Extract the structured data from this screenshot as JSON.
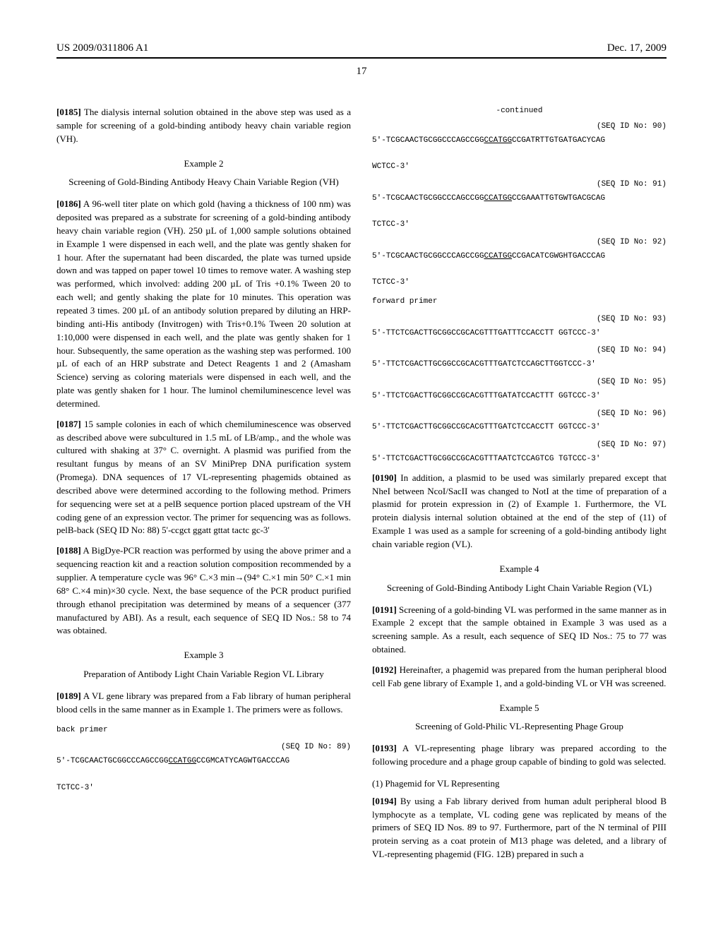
{
  "header": {
    "left": "US 2009/0311806 A1",
    "right": "Dec. 17, 2009"
  },
  "page_number": "17",
  "left_col": {
    "p0185": {
      "num": "[0185]",
      "text": "The dialysis internal solution obtained in the above step was used as a sample for screening of a gold-binding antibody heavy chain variable region (VH)."
    },
    "ex2_title": "Example 2",
    "ex2_sub": "Screening of Gold-Binding Antibody Heavy Chain Variable Region (VH)",
    "p0186": {
      "num": "[0186]",
      "text": "A 96-well titer plate on which gold (having a thickness of 100 nm) was deposited was prepared as a substrate for screening of a gold-binding antibody heavy chain variable region (VH). 250 µL of 1,000 sample solutions obtained in Example 1 were dispensed in each well, and the plate was gently shaken for 1 hour. After the supernatant had been discarded, the plate was turned upside down and was tapped on paper towel 10 times to remove water. A washing step was performed, which involved: adding 200 µL of Tris +0.1% Tween 20 to each well; and gently shaking the plate for 10 minutes. This operation was repeated 3 times. 200 µL of an antibody solution prepared by diluting an HRP-binding anti-His antibody (Invitrogen) with Tris+0.1% Tween 20 solution at 1:10,000 were dispensed in each well, and the plate was gently shaken for 1 hour. Subsequently, the same operation as the washing step was performed. 100 µL of each of an HRP substrate and Detect Reagents 1 and 2 (Amasham Science) serving as coloring materials were dispensed in each well, and the plate was gently shaken for 1 hour. The luminol chemiluminescence level was determined."
    },
    "p0187": {
      "num": "[0187]",
      "text": "15 sample colonies in each of which chemiluminescence was observed as described above were subcultured in 1.5 mL of LB/amp., and the whole was cultured with shaking at 37° C. overnight. A plasmid was purified from the resultant fungus by means of an SV MiniPrep DNA purification system (Promega). DNA sequences of 17 VL-representing phagemids obtained as described above were determined according to the following method. Primers for sequencing were set at a pelB sequence portion placed upstream of the VH coding gene of an expression vector. The primer for sequencing was as follows. pelB-back (SEQ ID No: 88) 5'-ccgct ggatt gttat tactc gc-3'"
    },
    "p0188": {
      "num": "[0188]",
      "text": "A BigDye-PCR reaction was performed by using the above primer and a sequencing reaction kit and a reaction solution composition recommended by a supplier. A temperature cycle was 96° C.×3 min→(94° C.×1 min 50° C.×1 min 68° C.×4 min)×30 cycle. Next, the base sequence of the PCR product purified through ethanol precipitation was determined by means of a sequencer (377 manufactured by ABI). As a result, each sequence of SEQ ID Nos.: 58 to 74 was obtained."
    },
    "ex3_title": "Example 3",
    "ex3_sub": "Preparation of Antibody Light Chain Variable Region VL Library",
    "p0189": {
      "num": "[0189]",
      "text": "A VL gene library was prepared from a Fab library of human peripheral blood cells in the same manner as in Example 1. The primers were as follows."
    },
    "back_primer_label": "back primer",
    "seq89_label": "(SEQ ID No: 89)",
    "seq89_line1_pre": "5'-TCGCAACTGCGGCCCAGCCGG",
    "seq89_line1_u": "CCATGG",
    "seq89_line1_post": "CCGMCATYCAGWTGACCCAG",
    "seq89_line2": "TCTCC-3'"
  },
  "right_col": {
    "continued": "-continued",
    "seq90_label": "(SEQ ID No: 90)",
    "seq90_line1_pre": "5'-TCGCAACTGCGGCCCAGCCGG",
    "seq90_line1_u": "CCATGG",
    "seq90_line1_post": "CCGATRTTGTGATGACYCAG",
    "seq90_line2": "WCTCC-3'",
    "seq91_label": "(SEQ ID No: 91)",
    "seq91_line1_pre": "5'-TCGCAACTGCGGCCCAGCCGG",
    "seq91_line1_u": "CCATGG",
    "seq91_line1_post": "CCGAAATTGTGWTGACGCAG",
    "seq91_line2": "TCTCC-3'",
    "seq92_label": "(SEQ ID No: 92)",
    "seq92_line1_pre": "5'-TCGCAACTGCGGCCCAGCCGG",
    "seq92_line1_u": "CCATGG",
    "seq92_line1_post": "CCGACATCGWGHTGACCCAG",
    "seq92_line2": "TCTCC-3'",
    "fwd_primer_label": "forward primer",
    "seq93_label": "(SEQ ID No: 93)",
    "seq93": "5'-TTCTCGACTTGCGGCCGCACGTTTGATTTCCACCTT GGTCCC-3'",
    "seq94_label": "(SEQ ID No: 94)",
    "seq94": "5'-TTCTCGACTTGCGGCCGCACGTTTGATCTCCAGCTTGGTCCC-3'",
    "seq95_label": "(SEQ ID No: 95)",
    "seq95": "5'-TTCTCGACTTGCGGCCGCACGTTTGATATCCACTTT GGTCCC-3'",
    "seq96_label": "(SEQ ID No: 96)",
    "seq96": "5'-TTCTCGACTTGCGGCCGCACGTTTGATCTCCACCTT GGTCCC-3'",
    "seq97_label": "(SEQ ID No: 97)",
    "seq97": "5'-TTCTCGACTTGCGGCCGCACGTTTAATCTCCAGTCG TGTCCC-3'",
    "p0190": {
      "num": "[0190]",
      "text": "In addition, a plasmid to be used was similarly prepared except that NheI between NcoI/SacII was changed to NotI at the time of preparation of a plasmid for protein expression in (2) of Example 1. Furthermore, the VL protein dialysis internal solution obtained at the end of the step of (11) of Example 1 was used as a sample for screening of a gold-binding antibody light chain variable region (VL)."
    },
    "ex4_title": "Example 4",
    "ex4_sub": "Screening of Gold-Binding Antibody Light Chain Variable Region (VL)",
    "p0191": {
      "num": "[0191]",
      "text": "Screening of a gold-binding VL was performed in the same manner as in Example 2 except that the sample obtained in Example 3 was used as a screening sample. As a result, each sequence of SEQ ID Nos.: 75 to 77 was obtained."
    },
    "p0192": {
      "num": "[0192]",
      "text": "Hereinafter, a phagemid was prepared from the human peripheral blood cell Fab gene library of Example 1, and a gold-binding VL or VH was screened."
    },
    "ex5_title": "Example 5",
    "ex5_sub": "Screening of Gold-Philic VL-Representing Phage Group",
    "p0193": {
      "num": "[0193]",
      "text": "A VL-representing phage library was prepared according to the following procedure and a phage group capable of binding to gold was selected."
    },
    "sub1": "(1) Phagemid for VL Representing",
    "p0194": {
      "num": "[0194]",
      "text": "By using a Fab library derived from human adult peripheral blood B lymphocyte as a template, VL coding gene was replicated by means of the primers of SEQ ID Nos. 89 to 97. Furthermore, part of the N terminal of PIII protein serving as a coat protein of M13 phage was deleted, and a library of VL-representing phagemid (FIG. 12B) prepared in such a"
    }
  }
}
